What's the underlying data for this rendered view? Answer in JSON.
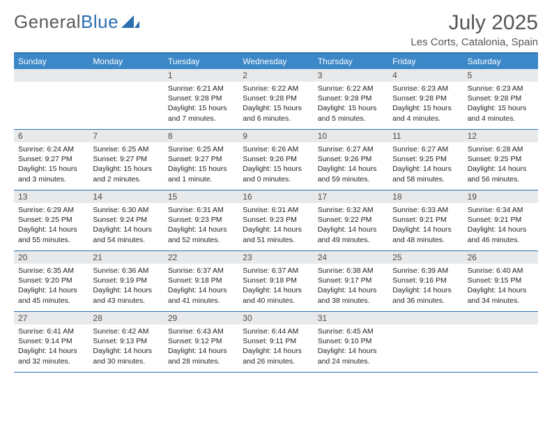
{
  "header": {
    "logo_general": "General",
    "logo_blue": "Blue",
    "title": "July 2025",
    "subtitle": "Les Corts, Catalonia, Spain"
  },
  "style": {
    "accent": "#3b87c8",
    "rule": "#2b6fb0",
    "daynum_bg": "#e8e9ea",
    "text": "#222222",
    "title_color": "#555555",
    "weekday_fontsize": 12,
    "daynum_fontsize": 12,
    "content_fontsize": 10.5,
    "title_fontsize": 30,
    "subtitle_fontsize": 15,
    "columns": 7,
    "rows": 5
  },
  "weekdays": [
    "Sunday",
    "Monday",
    "Tuesday",
    "Wednesday",
    "Thursday",
    "Friday",
    "Saturday"
  ],
  "weeks": [
    [
      {
        "num": "",
        "sunrise": "",
        "sunset": "",
        "daylight": ""
      },
      {
        "num": "",
        "sunrise": "",
        "sunset": "",
        "daylight": ""
      },
      {
        "num": "1",
        "sunrise": "Sunrise: 6:21 AM",
        "sunset": "Sunset: 9:28 PM",
        "daylight": "Daylight: 15 hours and 7 minutes."
      },
      {
        "num": "2",
        "sunrise": "Sunrise: 6:22 AM",
        "sunset": "Sunset: 9:28 PM",
        "daylight": "Daylight: 15 hours and 6 minutes."
      },
      {
        "num": "3",
        "sunrise": "Sunrise: 6:22 AM",
        "sunset": "Sunset: 9:28 PM",
        "daylight": "Daylight: 15 hours and 5 minutes."
      },
      {
        "num": "4",
        "sunrise": "Sunrise: 6:23 AM",
        "sunset": "Sunset: 9:28 PM",
        "daylight": "Daylight: 15 hours and 4 minutes."
      },
      {
        "num": "5",
        "sunrise": "Sunrise: 6:23 AM",
        "sunset": "Sunset: 9:28 PM",
        "daylight": "Daylight: 15 hours and 4 minutes."
      }
    ],
    [
      {
        "num": "6",
        "sunrise": "Sunrise: 6:24 AM",
        "sunset": "Sunset: 9:27 PM",
        "daylight": "Daylight: 15 hours and 3 minutes."
      },
      {
        "num": "7",
        "sunrise": "Sunrise: 6:25 AM",
        "sunset": "Sunset: 9:27 PM",
        "daylight": "Daylight: 15 hours and 2 minutes."
      },
      {
        "num": "8",
        "sunrise": "Sunrise: 6:25 AM",
        "sunset": "Sunset: 9:27 PM",
        "daylight": "Daylight: 15 hours and 1 minute."
      },
      {
        "num": "9",
        "sunrise": "Sunrise: 6:26 AM",
        "sunset": "Sunset: 9:26 PM",
        "daylight": "Daylight: 15 hours and 0 minutes."
      },
      {
        "num": "10",
        "sunrise": "Sunrise: 6:27 AM",
        "sunset": "Sunset: 9:26 PM",
        "daylight": "Daylight: 14 hours and 59 minutes."
      },
      {
        "num": "11",
        "sunrise": "Sunrise: 6:27 AM",
        "sunset": "Sunset: 9:25 PM",
        "daylight": "Daylight: 14 hours and 58 minutes."
      },
      {
        "num": "12",
        "sunrise": "Sunrise: 6:28 AM",
        "sunset": "Sunset: 9:25 PM",
        "daylight": "Daylight: 14 hours and 56 minutes."
      }
    ],
    [
      {
        "num": "13",
        "sunrise": "Sunrise: 6:29 AM",
        "sunset": "Sunset: 9:25 PM",
        "daylight": "Daylight: 14 hours and 55 minutes."
      },
      {
        "num": "14",
        "sunrise": "Sunrise: 6:30 AM",
        "sunset": "Sunset: 9:24 PM",
        "daylight": "Daylight: 14 hours and 54 minutes."
      },
      {
        "num": "15",
        "sunrise": "Sunrise: 6:31 AM",
        "sunset": "Sunset: 9:23 PM",
        "daylight": "Daylight: 14 hours and 52 minutes."
      },
      {
        "num": "16",
        "sunrise": "Sunrise: 6:31 AM",
        "sunset": "Sunset: 9:23 PM",
        "daylight": "Daylight: 14 hours and 51 minutes."
      },
      {
        "num": "17",
        "sunrise": "Sunrise: 6:32 AM",
        "sunset": "Sunset: 9:22 PM",
        "daylight": "Daylight: 14 hours and 49 minutes."
      },
      {
        "num": "18",
        "sunrise": "Sunrise: 6:33 AM",
        "sunset": "Sunset: 9:21 PM",
        "daylight": "Daylight: 14 hours and 48 minutes."
      },
      {
        "num": "19",
        "sunrise": "Sunrise: 6:34 AM",
        "sunset": "Sunset: 9:21 PM",
        "daylight": "Daylight: 14 hours and 46 minutes."
      }
    ],
    [
      {
        "num": "20",
        "sunrise": "Sunrise: 6:35 AM",
        "sunset": "Sunset: 9:20 PM",
        "daylight": "Daylight: 14 hours and 45 minutes."
      },
      {
        "num": "21",
        "sunrise": "Sunrise: 6:36 AM",
        "sunset": "Sunset: 9:19 PM",
        "daylight": "Daylight: 14 hours and 43 minutes."
      },
      {
        "num": "22",
        "sunrise": "Sunrise: 6:37 AM",
        "sunset": "Sunset: 9:18 PM",
        "daylight": "Daylight: 14 hours and 41 minutes."
      },
      {
        "num": "23",
        "sunrise": "Sunrise: 6:37 AM",
        "sunset": "Sunset: 9:18 PM",
        "daylight": "Daylight: 14 hours and 40 minutes."
      },
      {
        "num": "24",
        "sunrise": "Sunrise: 6:38 AM",
        "sunset": "Sunset: 9:17 PM",
        "daylight": "Daylight: 14 hours and 38 minutes."
      },
      {
        "num": "25",
        "sunrise": "Sunrise: 6:39 AM",
        "sunset": "Sunset: 9:16 PM",
        "daylight": "Daylight: 14 hours and 36 minutes."
      },
      {
        "num": "26",
        "sunrise": "Sunrise: 6:40 AM",
        "sunset": "Sunset: 9:15 PM",
        "daylight": "Daylight: 14 hours and 34 minutes."
      }
    ],
    [
      {
        "num": "27",
        "sunrise": "Sunrise: 6:41 AM",
        "sunset": "Sunset: 9:14 PM",
        "daylight": "Daylight: 14 hours and 32 minutes."
      },
      {
        "num": "28",
        "sunrise": "Sunrise: 6:42 AM",
        "sunset": "Sunset: 9:13 PM",
        "daylight": "Daylight: 14 hours and 30 minutes."
      },
      {
        "num": "29",
        "sunrise": "Sunrise: 6:43 AM",
        "sunset": "Sunset: 9:12 PM",
        "daylight": "Daylight: 14 hours and 28 minutes."
      },
      {
        "num": "30",
        "sunrise": "Sunrise: 6:44 AM",
        "sunset": "Sunset: 9:11 PM",
        "daylight": "Daylight: 14 hours and 26 minutes."
      },
      {
        "num": "31",
        "sunrise": "Sunrise: 6:45 AM",
        "sunset": "Sunset: 9:10 PM",
        "daylight": "Daylight: 14 hours and 24 minutes."
      },
      {
        "num": "",
        "sunrise": "",
        "sunset": "",
        "daylight": ""
      },
      {
        "num": "",
        "sunrise": "",
        "sunset": "",
        "daylight": ""
      }
    ]
  ]
}
